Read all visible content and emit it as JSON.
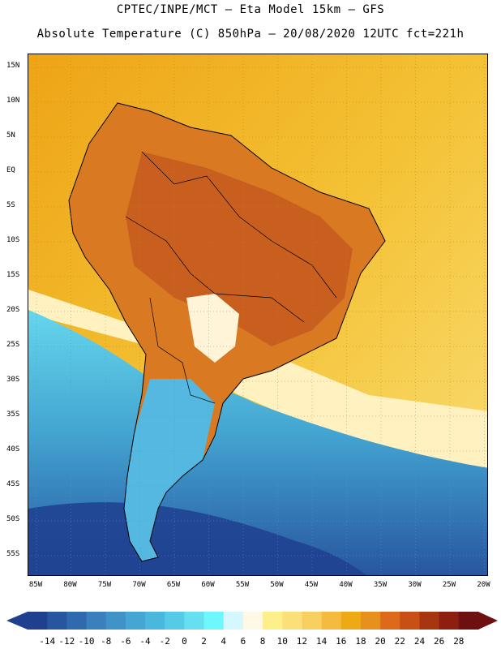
{
  "title": {
    "line1": "CPTEC/INPE/MCT –  Eta Model 15km – GFS",
    "line2": "Absolute Temperature (C) 850hPa – 20/08/2020 12UTC fct=221h"
  },
  "axes": {
    "lat_labels": [
      "15N",
      "10N",
      "5N",
      "EQ",
      "5S",
      "10S",
      "15S",
      "20S",
      "25S",
      "30S",
      "35S",
      "40S",
      "45S",
      "50S",
      "55S"
    ],
    "lon_labels": [
      "85W",
      "80W",
      "75W",
      "70W",
      "65W",
      "60W",
      "55W",
      "50W",
      "45W",
      "40W",
      "35W",
      "30W",
      "25W",
      "20W"
    ]
  },
  "colorbar": {
    "labels": [
      "-14",
      "-12",
      "-10",
      "-8",
      "-6",
      "-4",
      "-2",
      "0",
      "2",
      "4",
      "6",
      "8",
      "10",
      "12",
      "14",
      "16",
      "18",
      "20",
      "22",
      "24",
      "26",
      "28"
    ],
    "colors": [
      "#1f3f8f",
      "#27559f",
      "#2f6aae",
      "#3a80bd",
      "#3f93c7",
      "#44a6d2",
      "#4ab8dc",
      "#55cbe6",
      "#66e0f0",
      "#6ff7ff",
      "#d5f7ff",
      "#fff8e6",
      "#fdf08b",
      "#fbe07a",
      "#f7d060",
      "#f3bc3f",
      "#eeaa14",
      "#e8901e",
      "#dc6a1a",
      "#c84f16",
      "#a63510",
      "#8c1f10",
      "#6e1010"
    ],
    "left_arrow_color": "#1f3f8f",
    "right_arrow_color": "#6e1010"
  },
  "map_colors": {
    "ocean_warm": "#f1b022",
    "ocean_mid": "#f9d84a",
    "land_hot": "#d97a23",
    "land_hotter": "#c85f1e",
    "cold_deep": "#2b5fa8",
    "cold_mid": "#4aa9d6",
    "cold_light": "#5ccce6",
    "pale": "#fff4d8",
    "border_color": "#000000",
    "grid_color": "#8a8a8a"
  }
}
